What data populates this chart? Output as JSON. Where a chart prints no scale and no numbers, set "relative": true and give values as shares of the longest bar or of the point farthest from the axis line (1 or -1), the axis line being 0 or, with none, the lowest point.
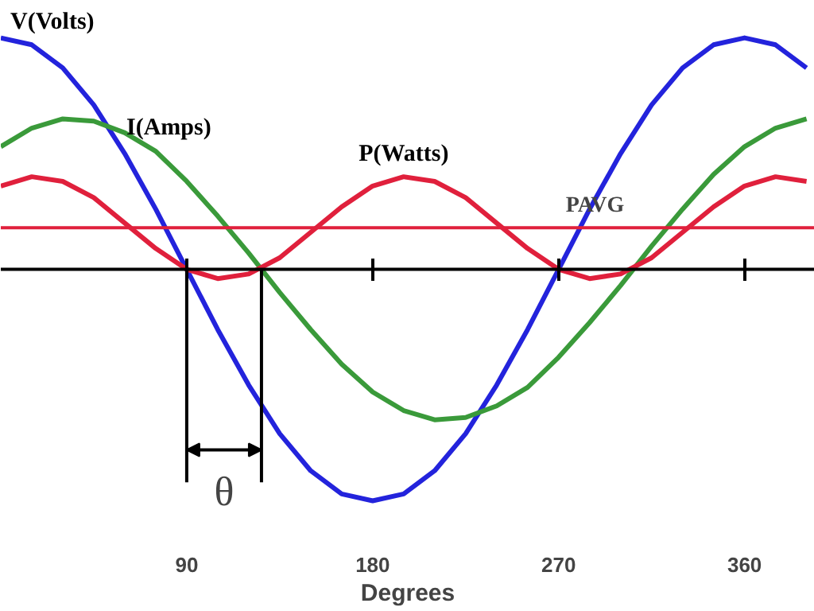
{
  "chart_data": {
    "type": "line",
    "relative": true,
    "xlabel": "Degrees",
    "x": [
      0,
      15,
      30,
      45,
      60,
      75,
      90,
      105,
      120,
      135,
      150,
      165,
      180,
      195,
      210,
      225,
      240,
      255,
      270,
      285,
      300,
      315,
      330,
      345,
      360,
      375,
      390
    ],
    "xlim": [
      0,
      394
    ],
    "xticks": [
      90,
      180,
      270,
      360
    ],
    "grid": false,
    "series": [
      {
        "name": "V(Volts)",
        "color": "#2323dc",
        "values": [
          1,
          0.97,
          0.87,
          0.71,
          0.5,
          0.26,
          0,
          -0.26,
          -0.5,
          -0.71,
          -0.87,
          -0.97,
          -1,
          -0.97,
          -0.87,
          -0.71,
          -0.5,
          -0.26,
          0,
          0.26,
          0.5,
          0.71,
          0.87,
          0.97,
          1,
          0.97,
          0.87
        ]
      },
      {
        "name": "I(Amps)",
        "color": "#3a9a3a",
        "values": [
          0.53,
          0.61,
          0.65,
          0.64,
          0.59,
          0.51,
          0.38,
          0.23,
          0.07,
          -0.1,
          -0.26,
          -0.41,
          -0.53,
          -0.61,
          -0.65,
          -0.64,
          -0.59,
          -0.51,
          -0.38,
          -0.23,
          -0.07,
          0.1,
          0.26,
          0.41,
          0.53,
          0.61,
          0.65
        ]
      },
      {
        "name": "P(Watts)",
        "color": "#e0203c",
        "values": [
          0.36,
          0.4,
          0.38,
          0.31,
          0.2,
          0.09,
          0,
          -0.04,
          -0.02,
          0.05,
          0.16,
          0.27,
          0.36,
          0.4,
          0.38,
          0.31,
          0.2,
          0.09,
          0,
          -0.04,
          -0.02,
          0.05,
          0.16,
          0.27,
          0.36,
          0.4,
          0.38
        ]
      }
    ],
    "ref_lines": [
      {
        "axis": "y",
        "value": 0.18,
        "label": "PAVG",
        "color": "#e0203c"
      }
    ],
    "annotations": [
      "θ"
    ]
  }
}
